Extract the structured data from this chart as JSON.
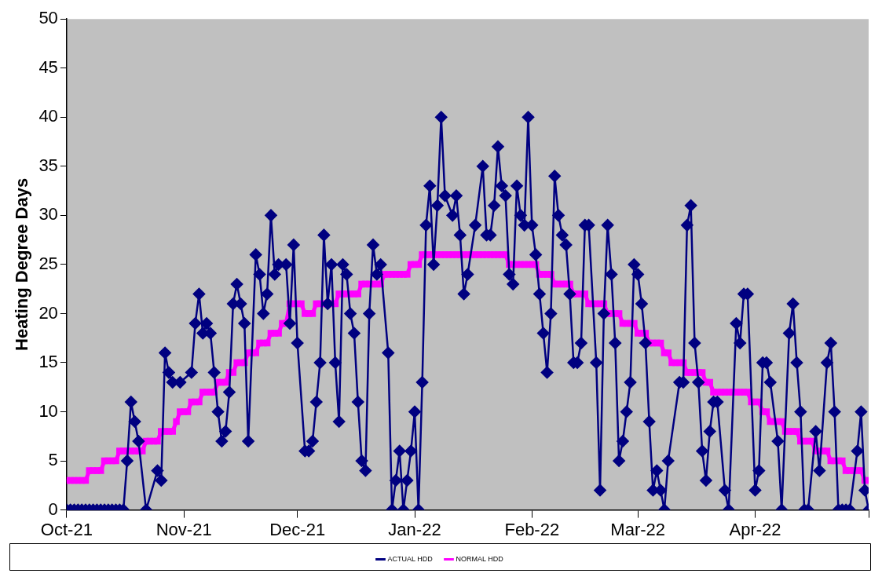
{
  "chart_data": {
    "type": "line",
    "ylabel": "Heating Degree Days",
    "ylim": [
      0,
      50
    ],
    "yticks": [
      0,
      5,
      10,
      15,
      20,
      25,
      30,
      35,
      40,
      45,
      50
    ],
    "xlim": [
      "2021-10-01",
      "2022-05-01"
    ],
    "xticks": [
      {
        "value": "2021-10-01",
        "label": "Oct-21"
      },
      {
        "value": "2021-11-01",
        "label": "Nov-21"
      },
      {
        "value": "2021-12-01",
        "label": "Dec-21"
      },
      {
        "value": "2022-01-01",
        "label": "Jan-22"
      },
      {
        "value": "2022-02-01",
        "label": "Feb-22"
      },
      {
        "value": "2022-03-01",
        "label": "Mar-22"
      },
      {
        "value": "2022-04-01",
        "label": "Apr-22"
      },
      {
        "value": "2022-05-01",
        "label": null
      }
    ],
    "grid": false,
    "legend": "bottom",
    "x": [
      "2021-10-01",
      "2021-10-02",
      "2021-10-03",
      "2021-10-04",
      "2021-10-05",
      "2021-10-06",
      "2021-10-07",
      "2021-10-08",
      "2021-10-09",
      "2021-10-10",
      "2021-10-11",
      "2021-10-12",
      "2021-10-13",
      "2021-10-14",
      "2021-10-15",
      "2021-10-16",
      "2021-10-17",
      "2021-10-18",
      "2021-10-19",
      "2021-10-20",
      "2021-10-21",
      "2021-10-22",
      "2021-10-23",
      "2021-10-24",
      "2021-10-25",
      "2021-10-26",
      "2021-10-27",
      "2021-10-28",
      "2021-10-29",
      "2021-10-30",
      "2021-10-31",
      "2021-11-01",
      "2021-11-02",
      "2021-11-03",
      "2021-11-04",
      "2021-11-05",
      "2021-11-06",
      "2021-11-07",
      "2021-11-08",
      "2021-11-09",
      "2021-11-10",
      "2021-11-11",
      "2021-11-12",
      "2021-11-13",
      "2021-11-14",
      "2021-11-15",
      "2021-11-16",
      "2021-11-17",
      "2021-11-18",
      "2021-11-19",
      "2021-11-20",
      "2021-11-21",
      "2021-11-22",
      "2021-11-23",
      "2021-11-24",
      "2021-11-25",
      "2021-11-26",
      "2021-11-27",
      "2021-11-28",
      "2021-11-29",
      "2021-11-30",
      "2021-12-01",
      "2021-12-02",
      "2021-12-03",
      "2021-12-04",
      "2021-12-05",
      "2021-12-06",
      "2021-12-07",
      "2021-12-08",
      "2021-12-09",
      "2021-12-10",
      "2021-12-11",
      "2021-12-12",
      "2021-12-13",
      "2021-12-14",
      "2021-12-15",
      "2021-12-16",
      "2021-12-17",
      "2021-12-18",
      "2021-12-19",
      "2021-12-20",
      "2021-12-21",
      "2021-12-22",
      "2021-12-23",
      "2021-12-24",
      "2021-12-25",
      "2021-12-26",
      "2021-12-27",
      "2021-12-28",
      "2021-12-29",
      "2021-12-30",
      "2021-12-31",
      "2022-01-01",
      "2022-01-02",
      "2022-01-03",
      "2022-01-04",
      "2022-01-05",
      "2022-01-06",
      "2022-01-07",
      "2022-01-08",
      "2022-01-09",
      "2022-01-10",
      "2022-01-11",
      "2022-01-12",
      "2022-01-13",
      "2022-01-14",
      "2022-01-15",
      "2022-01-16",
      "2022-01-17",
      "2022-01-18",
      "2022-01-19",
      "2022-01-20",
      "2022-01-21",
      "2022-01-22",
      "2022-01-23",
      "2022-01-24",
      "2022-01-25",
      "2022-01-26",
      "2022-01-27",
      "2022-01-28",
      "2022-01-29",
      "2022-01-30",
      "2022-01-31",
      "2022-02-01",
      "2022-02-02",
      "2022-02-03",
      "2022-02-04",
      "2022-02-05",
      "2022-02-06",
      "2022-02-07",
      "2022-02-08",
      "2022-02-09",
      "2022-02-10",
      "2022-02-11",
      "2022-02-12",
      "2022-02-13",
      "2022-02-14",
      "2022-02-15",
      "2022-02-16",
      "2022-02-17",
      "2022-02-18",
      "2022-02-19",
      "2022-02-20",
      "2022-02-21",
      "2022-02-22",
      "2022-02-23",
      "2022-02-24",
      "2022-02-25",
      "2022-02-26",
      "2022-02-27",
      "2022-02-28",
      "2022-03-01",
      "2022-03-02",
      "2022-03-03",
      "2022-03-04",
      "2022-03-05",
      "2022-03-06",
      "2022-03-07",
      "2022-03-08",
      "2022-03-09",
      "2022-03-10",
      "2022-03-11",
      "2022-03-12",
      "2022-03-13",
      "2022-03-14",
      "2022-03-15",
      "2022-03-16",
      "2022-03-17",
      "2022-03-18",
      "2022-03-19",
      "2022-03-20",
      "2022-03-21",
      "2022-03-22",
      "2022-03-23",
      "2022-03-24",
      "2022-03-25",
      "2022-03-26",
      "2022-03-27",
      "2022-03-28",
      "2022-03-29",
      "2022-03-30",
      "2022-03-31",
      "2022-04-01",
      "2022-04-02",
      "2022-04-03",
      "2022-04-04",
      "2022-04-05",
      "2022-04-06",
      "2022-04-07",
      "2022-04-08",
      "2022-04-09",
      "2022-04-10",
      "2022-04-11",
      "2022-04-12",
      "2022-04-13",
      "2022-04-14",
      "2022-04-15",
      "2022-04-16",
      "2022-04-17",
      "2022-04-18",
      "2022-04-19",
      "2022-04-20",
      "2022-04-21",
      "2022-04-22",
      "2022-04-23",
      "2022-04-24",
      "2022-04-25",
      "2022-04-26",
      "2022-04-27",
      "2022-04-28",
      "2022-04-29",
      "2022-04-30",
      "2022-05-01"
    ],
    "series": [
      {
        "name": "ACTUAL HDD",
        "color": "#000080",
        "marker": "diamond",
        "x": [
          "2021-10-01",
          "2021-10-02",
          "2021-10-03",
          "2021-10-04",
          "2021-10-05",
          "2021-10-06",
          "2021-10-07",
          "2021-10-08",
          "2021-10-09",
          "2021-10-10",
          "2021-10-11",
          "2021-10-12",
          "2021-10-13",
          "2021-10-14",
          "2021-10-15",
          "2021-10-16",
          "2021-10-17",
          "2021-10-18",
          "2021-10-19",
          "2021-10-20",
          "2021-10-22",
          "2021-10-25",
          "2021-10-26",
          "2021-10-27",
          "2021-10-28",
          "2021-10-29",
          "2021-10-31",
          "2021-11-03",
          "2021-11-04",
          "2021-11-05",
          "2021-11-06",
          "2021-11-07",
          "2021-11-08",
          "2021-11-09",
          "2021-11-10",
          "2021-11-11",
          "2021-11-12",
          "2021-11-13",
          "2021-11-14",
          "2021-11-15",
          "2021-11-16",
          "2021-11-17",
          "2021-11-18",
          "2021-11-20",
          "2021-11-21",
          "2021-11-22",
          "2021-11-23",
          "2021-11-24",
          "2021-11-25",
          "2021-11-26",
          "2021-11-28",
          "2021-11-29",
          "2021-11-30",
          "2021-12-01",
          "2021-12-03",
          "2021-12-04",
          "2021-12-05",
          "2021-12-06",
          "2021-12-07",
          "2021-12-08",
          "2021-12-09",
          "2021-12-10",
          "2021-12-11",
          "2021-12-12",
          "2021-12-13",
          "2021-12-14",
          "2021-12-15",
          "2021-12-16",
          "2021-12-17",
          "2021-12-18",
          "2021-12-19",
          "2021-12-20",
          "2021-12-21",
          "2021-12-22",
          "2021-12-23",
          "2021-12-25",
          "2021-12-26",
          "2021-12-27",
          "2021-12-28",
          "2021-12-29",
          "2021-12-30",
          "2021-12-31",
          "2022-01-01",
          "2022-01-02",
          "2022-01-03",
          "2022-01-04",
          "2022-01-05",
          "2022-01-06",
          "2022-01-07",
          "2022-01-08",
          "2022-01-09",
          "2022-01-11",
          "2022-01-12",
          "2022-01-13",
          "2022-01-14",
          "2022-01-15",
          "2022-01-17",
          "2022-01-19",
          "2022-01-20",
          "2022-01-21",
          "2022-01-22",
          "2022-01-23",
          "2022-01-24",
          "2022-01-25",
          "2022-01-26",
          "2022-01-27",
          "2022-01-28",
          "2022-01-29",
          "2022-01-30",
          "2022-01-31",
          "2022-02-01",
          "2022-02-02",
          "2022-02-03",
          "2022-02-04",
          "2022-02-05",
          "2022-02-06",
          "2022-02-07",
          "2022-02-08",
          "2022-02-09",
          "2022-02-10",
          "2022-02-11",
          "2022-02-12",
          "2022-02-13",
          "2022-02-14",
          "2022-02-15",
          "2022-02-16",
          "2022-02-18",
          "2022-02-19",
          "2022-02-20",
          "2022-02-21",
          "2022-02-22",
          "2022-02-23",
          "2022-02-24",
          "2022-02-25",
          "2022-02-26",
          "2022-02-27",
          "2022-02-28",
          "2022-03-01",
          "2022-03-02",
          "2022-03-03",
          "2022-03-04",
          "2022-03-05",
          "2022-03-06",
          "2022-03-07",
          "2022-03-08",
          "2022-03-09",
          "2022-03-12",
          "2022-03-13",
          "2022-03-14",
          "2022-03-15",
          "2022-03-16",
          "2022-03-17",
          "2022-03-18",
          "2022-03-19",
          "2022-03-20",
          "2022-03-21",
          "2022-03-22",
          "2022-03-24",
          "2022-03-25",
          "2022-03-27",
          "2022-03-28",
          "2022-03-29",
          "2022-03-30",
          "2022-04-01",
          "2022-04-02",
          "2022-04-03",
          "2022-04-04",
          "2022-04-05",
          "2022-04-07",
          "2022-04-08",
          "2022-04-10",
          "2022-04-11",
          "2022-04-12",
          "2022-04-13",
          "2022-04-14",
          "2022-04-15",
          "2022-04-17",
          "2022-04-18",
          "2022-04-20",
          "2022-04-21",
          "2022-04-22",
          "2022-04-23",
          "2022-04-24",
          "2022-04-25",
          "2022-04-26",
          "2022-04-28",
          "2022-04-29",
          "2022-04-30",
          "2022-05-01"
        ],
        "values": [
          0,
          0,
          0,
          0,
          0,
          0,
          0,
          0,
          0,
          0,
          0,
          0,
          0,
          0,
          0,
          0,
          5,
          11,
          9,
          7,
          0,
          4,
          3,
          16,
          14,
          13,
          13,
          14,
          19,
          22,
          18,
          19,
          18,
          14,
          10,
          7,
          8,
          12,
          21,
          23,
          21,
          19,
          7,
          26,
          24,
          20,
          22,
          30,
          24,
          25,
          25,
          19,
          27,
          17,
          6,
          6,
          7,
          11,
          15,
          28,
          21,
          25,
          15,
          9,
          25,
          24,
          20,
          18,
          11,
          5,
          4,
          20,
          27,
          24,
          25,
          16,
          0,
          3,
          6,
          0,
          3,
          6,
          10,
          0,
          13,
          29,
          33,
          25,
          31,
          40,
          32,
          30,
          32,
          28,
          22,
          24,
          29,
          35,
          28,
          28,
          31,
          37,
          33,
          32,
          24,
          23,
          33,
          30,
          29,
          40,
          29,
          26,
          22,
          18,
          14,
          20,
          34,
          30,
          28,
          27,
          22,
          15,
          15,
          17,
          29,
          29,
          15,
          2,
          20,
          29,
          24,
          17,
          5,
          7,
          10,
          13,
          25,
          24,
          21,
          17,
          9,
          2,
          4,
          2,
          0,
          5,
          13,
          13,
          29,
          31,
          17,
          13,
          6,
          3,
          8,
          11,
          11,
          2,
          0,
          19,
          17,
          22,
          22,
          2,
          4,
          15,
          15,
          13,
          7,
          0,
          18,
          21,
          15,
          10,
          0,
          0,
          8,
          4,
          15,
          17,
          10,
          0,
          0,
          0,
          0,
          6,
          10,
          2,
          0
        ]
      },
      {
        "name": "NORMAL HDD",
        "color": "#ff00ff",
        "marker": "square",
        "values": [
          3,
          3,
          3,
          3,
          3,
          3,
          4,
          4,
          4,
          4,
          5,
          5,
          5,
          5,
          6,
          6,
          6,
          6,
          6,
          6,
          6,
          7,
          7,
          7,
          7,
          8,
          8,
          8,
          8,
          9,
          10,
          10,
          10,
          11,
          11,
          11,
          12,
          12,
          12,
          12,
          13,
          13,
          13,
          14,
          14,
          15,
          15,
          15,
          16,
          16,
          16,
          17,
          17,
          17,
          18,
          18,
          18,
          19,
          19,
          21,
          21,
          21,
          21,
          20,
          20,
          20,
          21,
          21,
          21,
          21,
          21,
          21,
          22,
          22,
          22,
          22,
          22,
          22,
          23,
          23,
          23,
          23,
          23,
          23,
          24,
          24,
          24,
          24,
          24,
          24,
          24,
          25,
          25,
          25,
          26,
          26,
          26,
          26,
          26,
          26,
          26,
          26,
          26,
          26,
          26,
          26,
          26,
          26,
          26,
          26,
          26,
          26,
          26,
          26,
          26,
          26,
          26,
          25,
          25,
          25,
          25,
          25,
          25,
          25,
          25,
          24,
          24,
          24,
          24,
          23,
          23,
          23,
          23,
          23,
          22,
          22,
          22,
          22,
          21,
          21,
          21,
          21,
          21,
          20,
          20,
          20,
          20,
          19,
          19,
          19,
          19,
          18,
          18,
          18,
          17,
          17,
          17,
          17,
          16,
          16,
          15,
          15,
          15,
          15,
          14,
          14,
          14,
          14,
          14,
          13,
          13,
          12,
          12,
          12,
          12,
          12,
          12,
          12,
          12,
          12,
          12,
          11,
          11,
          11,
          10,
          10,
          9,
          9,
          9,
          9,
          8,
          8,
          8,
          8,
          7,
          7,
          7,
          7,
          6,
          6,
          6,
          6,
          5,
          5,
          5,
          5,
          4,
          4,
          4,
          4,
          4,
          3,
          3
        ]
      }
    ]
  }
}
